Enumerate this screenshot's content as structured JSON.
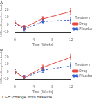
{
  "chart_data": [
    {
      "type": "line",
      "title": "A",
      "x_label": "Time (Weeks)",
      "y_label": "LS Mean Change from Baseline",
      "x": [
        0,
        2,
        6,
        12
      ],
      "xlim": [
        0,
        12
      ],
      "xticks": [
        0,
        4,
        8,
        12
      ],
      "ylim": [
        -10,
        25
      ],
      "yticks": [
        -10,
        0,
        10,
        20
      ],
      "legend": "right",
      "legend_title": "Treatment",
      "series": [
        {
          "name": "Drug",
          "color": "#e8473f",
          "line_style": "solid",
          "marker": "circle",
          "values": [
            2,
            -4,
            8,
            18
          ],
          "errors": [
            3,
            3,
            3,
            4
          ]
        },
        {
          "name": "Placebo",
          "color": "#3a5fcd",
          "line_style": "dashed",
          "marker": "circle",
          "values": [
            2,
            -6,
            4,
            6
          ],
          "errors": [
            3,
            3,
            3,
            4
          ]
        }
      ]
    },
    {
      "type": "line",
      "title": "B",
      "x_label": "Time (Weeks)",
      "y_label": "LS Mean Change from Baseline",
      "x": [
        0,
        2,
        6,
        12
      ],
      "xlim": [
        0,
        12
      ],
      "xticks": [
        0,
        4,
        8,
        12
      ],
      "ylim": [
        -10,
        25
      ],
      "yticks": [
        -10,
        0,
        10,
        20
      ],
      "legend": "right",
      "legend_title": "Treatment",
      "series": [
        {
          "name": "Drug",
          "color": "#e8473f",
          "line_style": "solid",
          "marker": "circle",
          "values": [
            0,
            -8,
            6,
            20
          ],
          "errors": [
            3,
            3,
            3,
            4
          ]
        },
        {
          "name": "Placebo",
          "color": "#3a5fcd",
          "line_style": "dashed",
          "marker": "circle",
          "values": [
            0,
            -8,
            2,
            8
          ],
          "errors": [
            3,
            3,
            3,
            4
          ]
        }
      ]
    }
  ],
  "footnote": "CFB: change from baseline"
}
